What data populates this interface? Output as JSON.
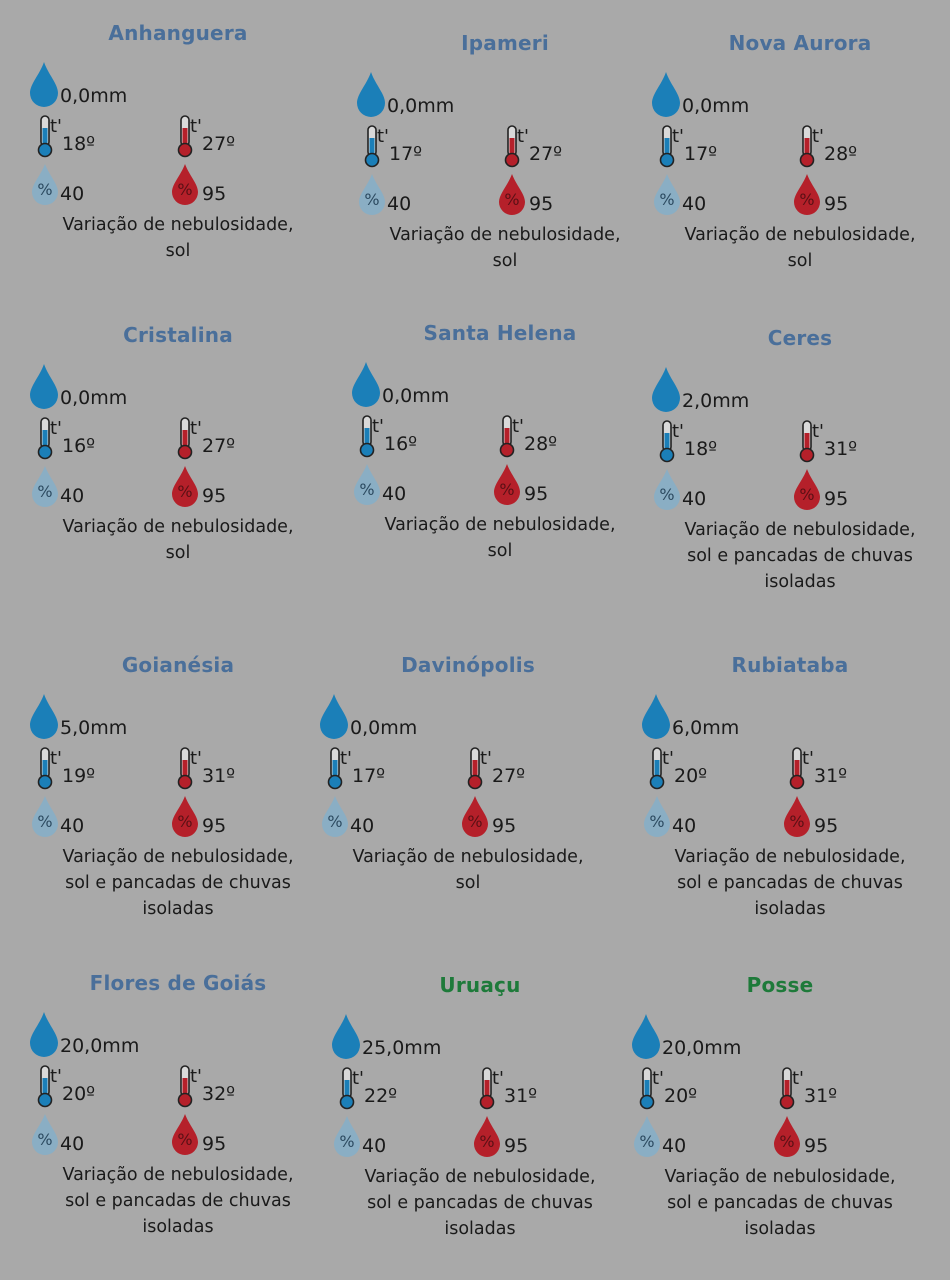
{
  "colors": {
    "background": "#a9a9a9",
    "title_blue": "#4a6f9a",
    "title_green": "#1e7a3a",
    "rain_drop": "#1b7fb8",
    "min_temp": "#1b7fb8",
    "max_temp": "#b5202a",
    "humidity_min": "#8aaec4",
    "humidity_max": "#b5202a"
  },
  "icons": {
    "rain": "water-drop-icon",
    "min_temp": "thermometer-cold-icon",
    "max_temp": "thermometer-hot-icon",
    "min_humidity": "humidity-low-icon",
    "max_humidity": "humidity-high-icon",
    "temp_symbol": "t'",
    "percent_symbol": "%"
  },
  "cities": [
    {
      "name": "Anhanguera",
      "rain": "0,0mm",
      "min_temp": "18º",
      "max_temp": "27º",
      "min_humidity": "40",
      "max_humidity": "95",
      "desc_line1": "Variação de nebulosidade,",
      "desc_line2": "sol",
      "desc_line3": ""
    },
    {
      "name": "Ipameri",
      "rain": "0,0mm",
      "min_temp": "17º",
      "max_temp": "27º",
      "min_humidity": "40",
      "max_humidity": "95",
      "desc_line1": "Variação de nebulosidade,",
      "desc_line2": "sol",
      "desc_line3": ""
    },
    {
      "name": "Nova Aurora",
      "rain": "0,0mm",
      "min_temp": "17º",
      "max_temp": "28º",
      "min_humidity": "40",
      "max_humidity": "95",
      "desc_line1": "Variação de nebulosidade,",
      "desc_line2": "sol",
      "desc_line3": ""
    },
    {
      "name": "Cristalina",
      "rain": "0,0mm",
      "min_temp": "16º",
      "max_temp": "27º",
      "min_humidity": "40",
      "max_humidity": "95",
      "desc_line1": "Variação de nebulosidade,",
      "desc_line2": "sol",
      "desc_line3": ""
    },
    {
      "name": "Santa Helena",
      "rain": "0,0mm",
      "min_temp": "16º",
      "max_temp": "28º",
      "min_humidity": "40",
      "max_humidity": "95",
      "desc_line1": "Variação de nebulosidade,",
      "desc_line2": "sol",
      "desc_line3": ""
    },
    {
      "name": "Ceres",
      "rain": "2,0mm",
      "min_temp": "18º",
      "max_temp": "31º",
      "min_humidity": "40",
      "max_humidity": "95",
      "desc_line1": "Variação de nebulosidade,",
      "desc_line2": "sol e pancadas de chuvas",
      "desc_line3": "isoladas"
    },
    {
      "name": "Goianésia",
      "rain": "5,0mm",
      "min_temp": "19º",
      "max_temp": "31º",
      "min_humidity": "40",
      "max_humidity": "95",
      "desc_line1": "Variação de nebulosidade,",
      "desc_line2": "sol e pancadas de chuvas",
      "desc_line3": "isoladas"
    },
    {
      "name": "Davinópolis",
      "rain": "0,0mm",
      "min_temp": "17º",
      "max_temp": "27º",
      "min_humidity": "40",
      "max_humidity": "95",
      "desc_line1": "Variação de nebulosidade,",
      "desc_line2": "sol",
      "desc_line3": ""
    },
    {
      "name": "Rubiataba",
      "rain": "6,0mm",
      "min_temp": "20º",
      "max_temp": "31º",
      "min_humidity": "40",
      "max_humidity": "95",
      "desc_line1": "Variação de nebulosidade,",
      "desc_line2": "sol e pancadas de chuvas",
      "desc_line3": "isoladas"
    },
    {
      "name": "Flores de Goiás",
      "rain": "20,0mm",
      "min_temp": "20º",
      "max_temp": "32º",
      "min_humidity": "40",
      "max_humidity": "95",
      "desc_line1": "Variação de nebulosidade,",
      "desc_line2": "sol e pancadas de chuvas",
      "desc_line3": "isoladas"
    },
    {
      "name": "Uruaçu",
      "rain": "25,0mm",
      "min_temp": "22º",
      "max_temp": "31º",
      "min_humidity": "40",
      "max_humidity": "95",
      "desc_line1": "Variação de nebulosidade,",
      "desc_line2": "sol e pancadas de chuvas",
      "desc_line3": "isoladas"
    },
    {
      "name": "Posse",
      "rain": "20,0mm",
      "min_temp": "20º",
      "max_temp": "31º",
      "min_humidity": "40",
      "max_humidity": "95",
      "desc_line1": "Variação de nebulosidade,",
      "desc_line2": "sol e pancadas de chuvas",
      "desc_line3": "isoladas"
    }
  ]
}
